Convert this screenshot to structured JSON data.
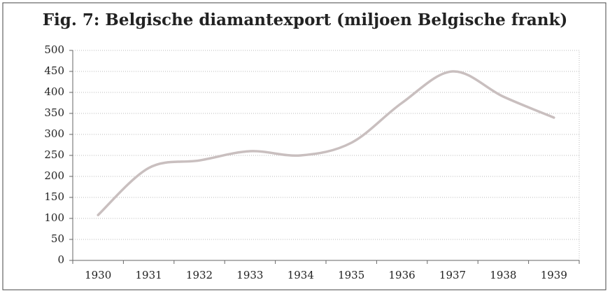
{
  "chart_data": {
    "type": "line",
    "title": "Fig. 7: Belgische diamantexport (miljoen Belgische frank)",
    "categories": [
      "1930",
      "1931",
      "1932",
      "1933",
      "1934",
      "1935",
      "1936",
      "1937",
      "1938",
      "1939"
    ],
    "values": [
      108,
      220,
      238,
      260,
      250,
      280,
      375,
      450,
      390,
      340
    ],
    "color": "#c9bfbf",
    "ylim": [
      0,
      500
    ],
    "yticks": [
      0,
      50,
      100,
      150,
      200,
      250,
      300,
      350,
      400,
      450,
      500
    ],
    "grid": true
  }
}
